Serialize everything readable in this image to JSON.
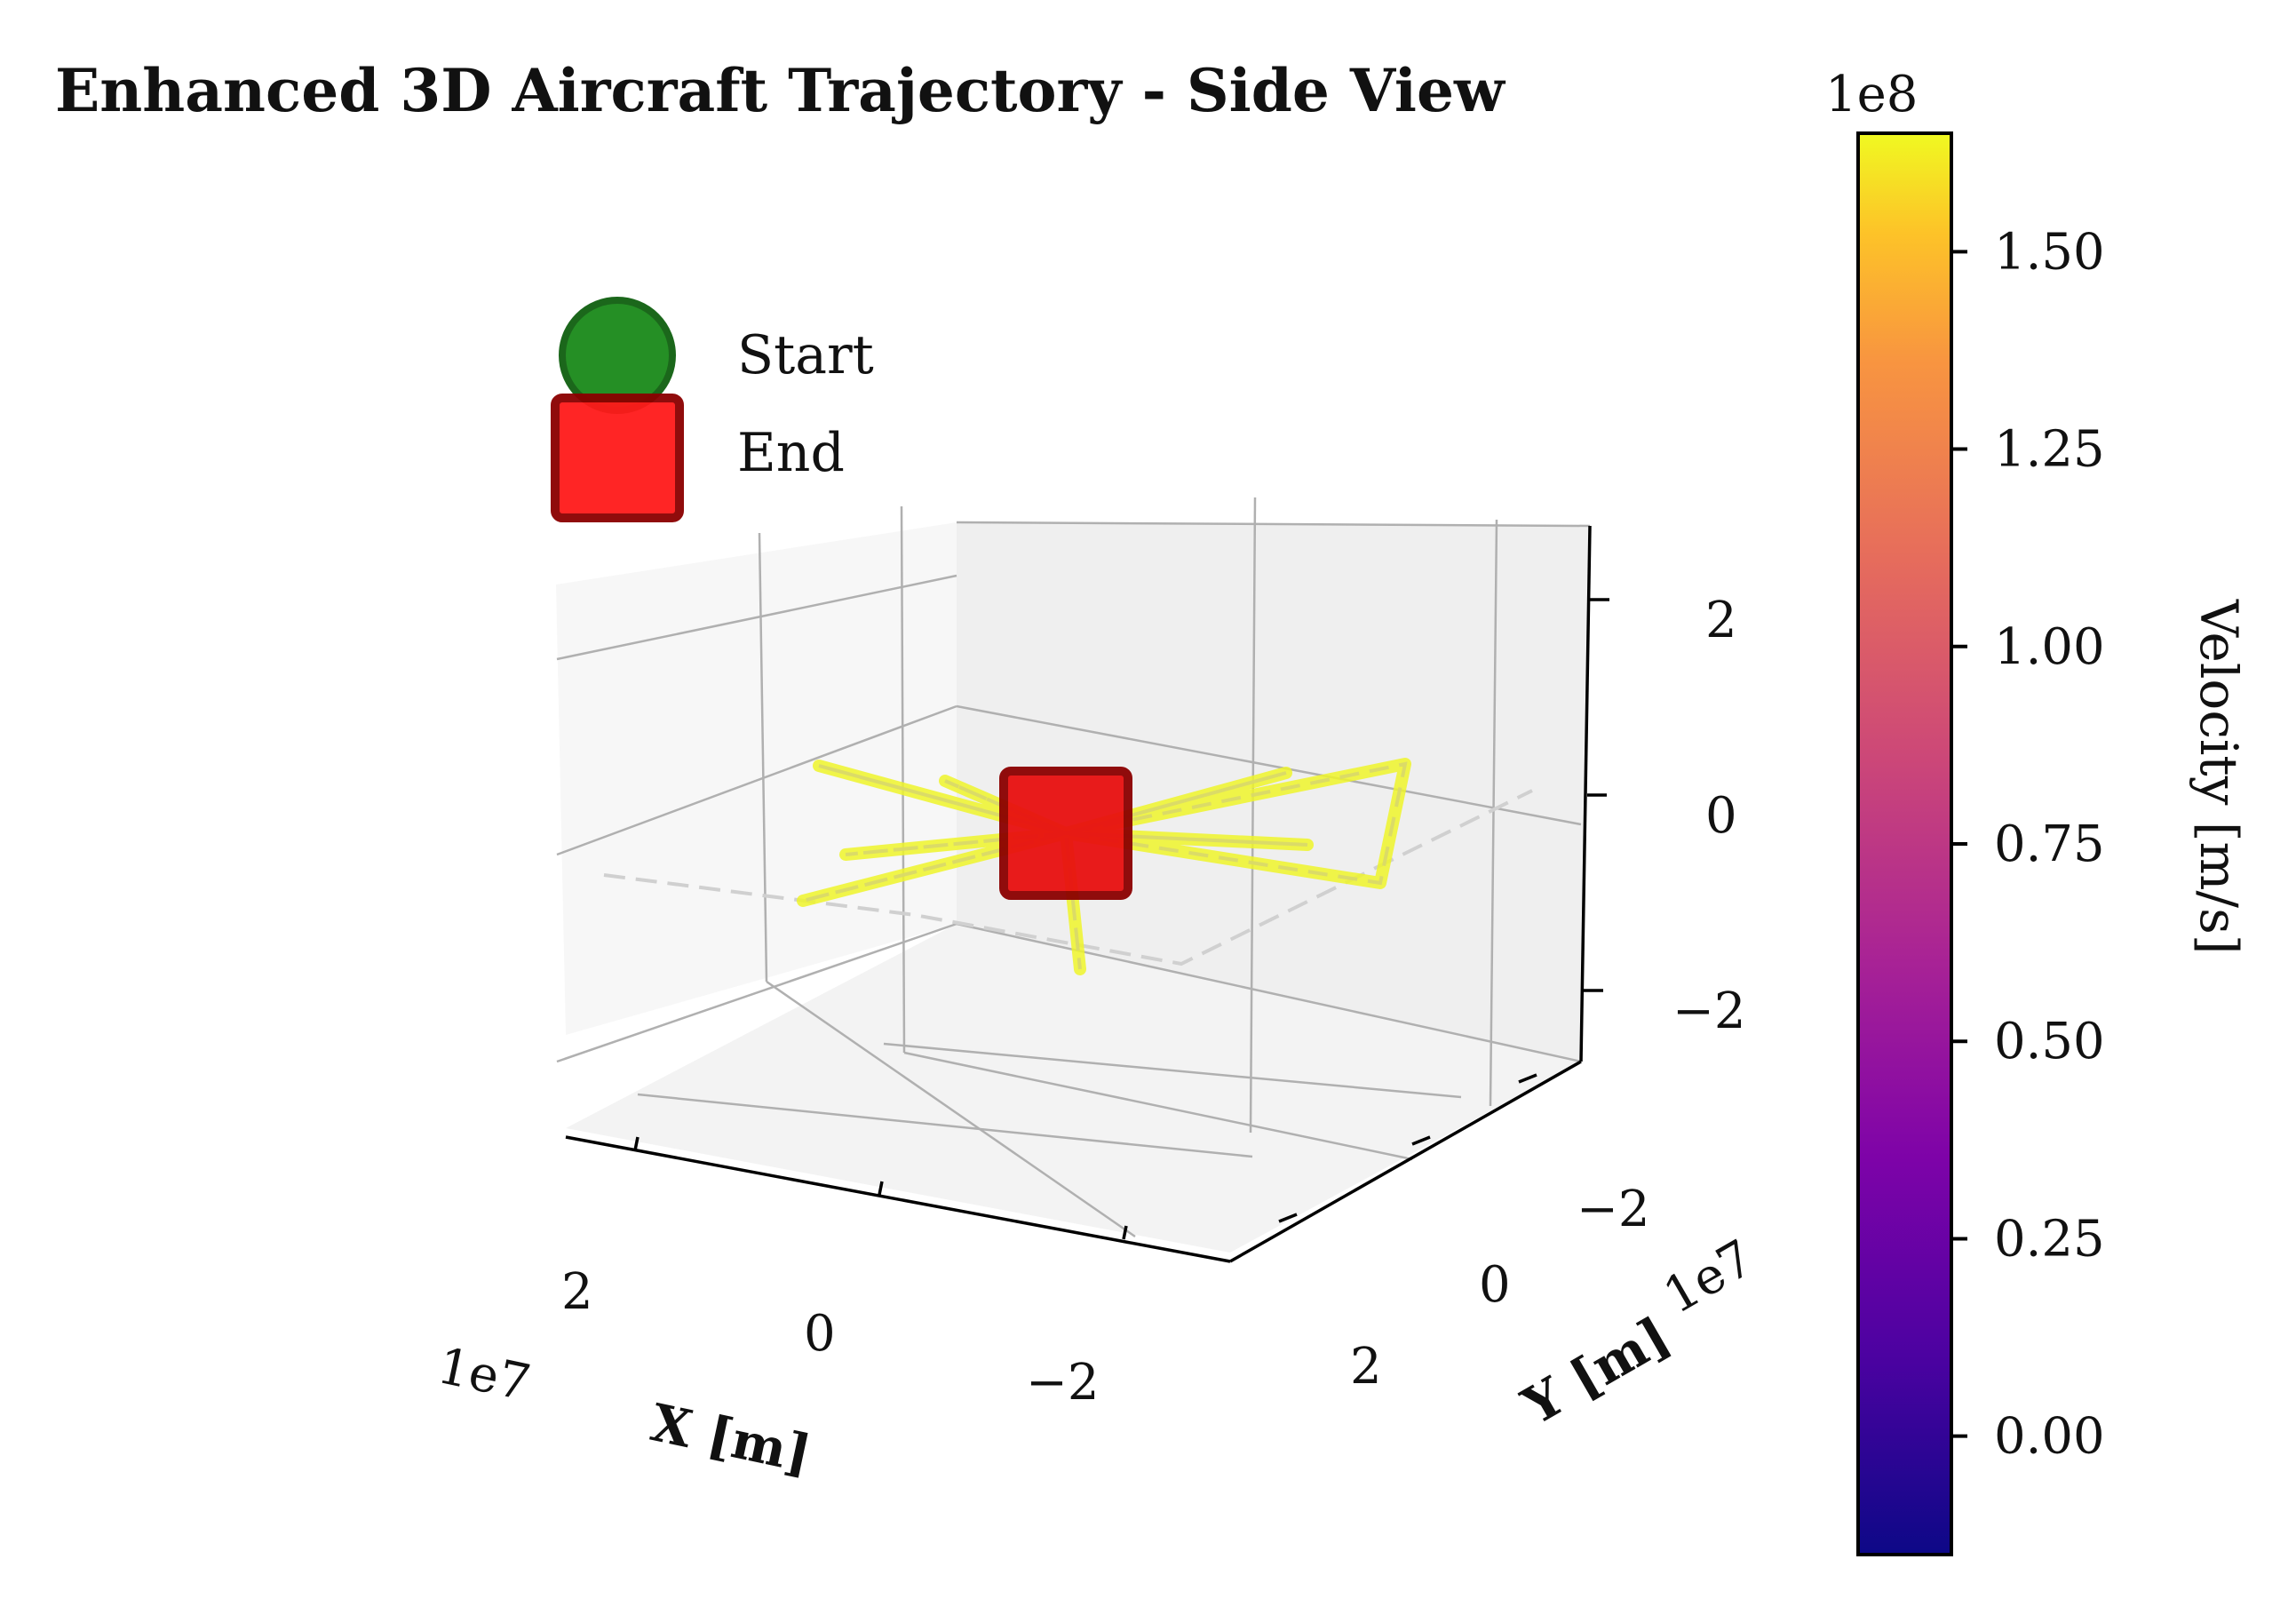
{
  "chart_data": {
    "type": "line",
    "projection": "3d",
    "title": "Enhanced 3D Aircraft Trajectory - Side View",
    "xlabel": "X [m]",
    "ylabel": "Y [m]",
    "zlabel": "",
    "x_offset_text": "1e7",
    "y_offset_text": "1e7",
    "x_ticks": [
      "2",
      "0",
      "−2"
    ],
    "y_ticks": [
      "−2",
      "0",
      "2"
    ],
    "z_ticks": [
      "2",
      "0",
      "−2"
    ],
    "xlim": [
      -3,
      3
    ],
    "ylim": [
      -3,
      3
    ],
    "zlim": [
      -3,
      3
    ],
    "grid": true,
    "legend": {
      "placement": "upper-left",
      "entries": [
        {
          "label": "Start",
          "marker": "circle",
          "color": "#1a8a1a"
        },
        {
          "label": "End",
          "marker": "square",
          "color": "#ff1a1a"
        }
      ]
    },
    "trajectory": {
      "color": "#eef52a",
      "note_units": "1e7 m",
      "points": [
        [
          0,
          0,
          0
        ],
        [
          1.6,
          -0.4,
          0.8
        ],
        [
          0,
          0,
          0
        ],
        [
          -1.9,
          0.2,
          0.4
        ],
        [
          0,
          0,
          0
        ],
        [
          -1.6,
          0.4,
          -0.4
        ],
        [
          0,
          0,
          0
        ],
        [
          2.6,
          -0.3,
          1.1
        ],
        [
          2.1,
          -1.0,
          -0.4
        ],
        [
          0,
          0,
          0
        ],
        [
          -1.9,
          0.5,
          -0.9
        ],
        [
          0,
          0,
          0
        ],
        [
          0.2,
          0.2,
          -1.3
        ],
        [
          0,
          0,
          0
        ],
        [
          -0.8,
          0.4,
          0.5
        ],
        [
          0,
          0,
          0
        ],
        [
          1.9,
          -0.1,
          0.2
        ],
        [
          0,
          0,
          0
        ]
      ]
    },
    "start_marker": [
      0,
      0,
      0
    ],
    "end_marker": [
      0,
      0,
      0
    ],
    "colorbar": {
      "label": "Velocity [m/s]",
      "offset_text": "1e8",
      "colormap": "plasma",
      "range": [
        -0.15,
        1.65
      ],
      "ticks": [
        "0.00",
        "0.25",
        "0.50",
        "0.75",
        "1.00",
        "1.25",
        "1.50"
      ],
      "tick_values": [
        0.0,
        0.25,
        0.5,
        0.75,
        1.0,
        1.25,
        1.5
      ]
    },
    "colors": {
      "start": "#1a8a1a",
      "end": "#ff1a1a",
      "end_edge": "#8b0000",
      "trajectory": "#eef52a",
      "pane": "#f2f2f2",
      "grid": "#b0b0b0"
    }
  }
}
